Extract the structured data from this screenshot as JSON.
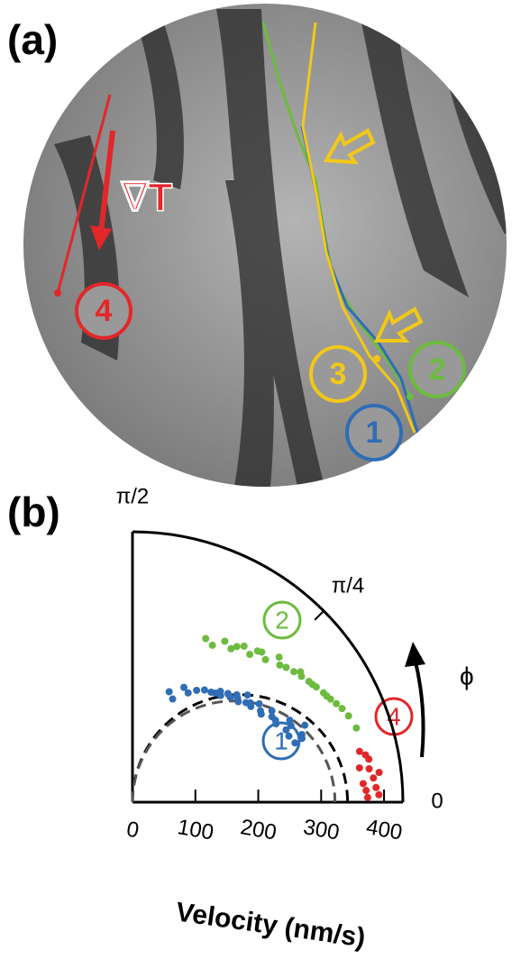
{
  "panel_a": {
    "label": "(a)",
    "gradient_label": "∇T",
    "markers": [
      "1",
      "2",
      "3",
      "4"
    ]
  },
  "chart_data": {
    "type": "polar-scatter",
    "panel_label": "(b)",
    "r_label": "Velocity (nm/s)",
    "phi_label": "ϕ",
    "rlim": [
      0,
      430
    ],
    "rticks": [
      0,
      100,
      200,
      300,
      400
    ],
    "philim": [
      0,
      1.5708
    ],
    "phiticks": [
      0,
      {
        "value": 0.7854,
        "label": "π/4"
      },
      {
        "value": 1.5708,
        "label": "π/2"
      }
    ],
    "series": [
      {
        "name": "1",
        "color": "#2f6db5",
        "r": [
          245,
          260,
          230,
          280,
          215,
          250,
          270,
          235,
          205,
          290,
          225,
          260,
          240,
          200,
          275,
          255,
          220,
          265,
          185,
          300,
          238,
          248,
          212,
          282,
          228,
          262,
          195,
          270,
          250,
          242,
          218,
          288,
          232,
          176
        ],
        "phi": [
          0.7,
          0.55,
          0.85,
          0.45,
          0.95,
          0.62,
          0.4,
          0.78,
          1.05,
          0.38,
          0.9,
          0.5,
          0.72,
          1.15,
          0.35,
          0.66,
          0.88,
          0.58,
          1.25,
          0.42,
          0.8,
          0.6,
          1.0,
          0.48,
          0.82,
          0.52,
          1.1,
          0.44,
          0.75,
          0.68,
          0.92,
          0.36,
          0.76,
          1.2
        ]
      },
      {
        "name": "2",
        "color": "#6dbb3f",
        "r": [
          320,
          340,
          300,
          360,
          290,
          330,
          350,
          310,
          280,
          370,
          325,
          345,
          305,
          355,
          295,
          335,
          315,
          365,
          285,
          375,
          328,
          342,
          312,
          352,
          298,
          338
        ],
        "phi": [
          0.75,
          0.6,
          0.9,
          0.45,
          1.0,
          0.68,
          0.52,
          0.82,
          1.1,
          0.38,
          0.72,
          0.56,
          0.95,
          0.48,
          1.05,
          0.64,
          0.86,
          0.42,
          1.15,
          0.32,
          0.78,
          0.58,
          0.88,
          0.5,
          0.98,
          0.66
        ]
      },
      {
        "name": "4",
        "color": "#e2272a",
        "r": [
          372,
          385,
          365,
          392,
          378,
          368,
          395,
          382,
          374,
          388,
          380,
          370
        ],
        "phi": [
          0.05,
          0.1,
          0.15,
          0.03,
          0.2,
          0.08,
          0.12,
          0.18,
          0.02,
          0.06,
          0.14,
          0.22
        ]
      }
    ],
    "fits": [
      {
        "color": "#000000",
        "d": 342
      },
      {
        "color": "#555555",
        "d": 322
      }
    ]
  }
}
